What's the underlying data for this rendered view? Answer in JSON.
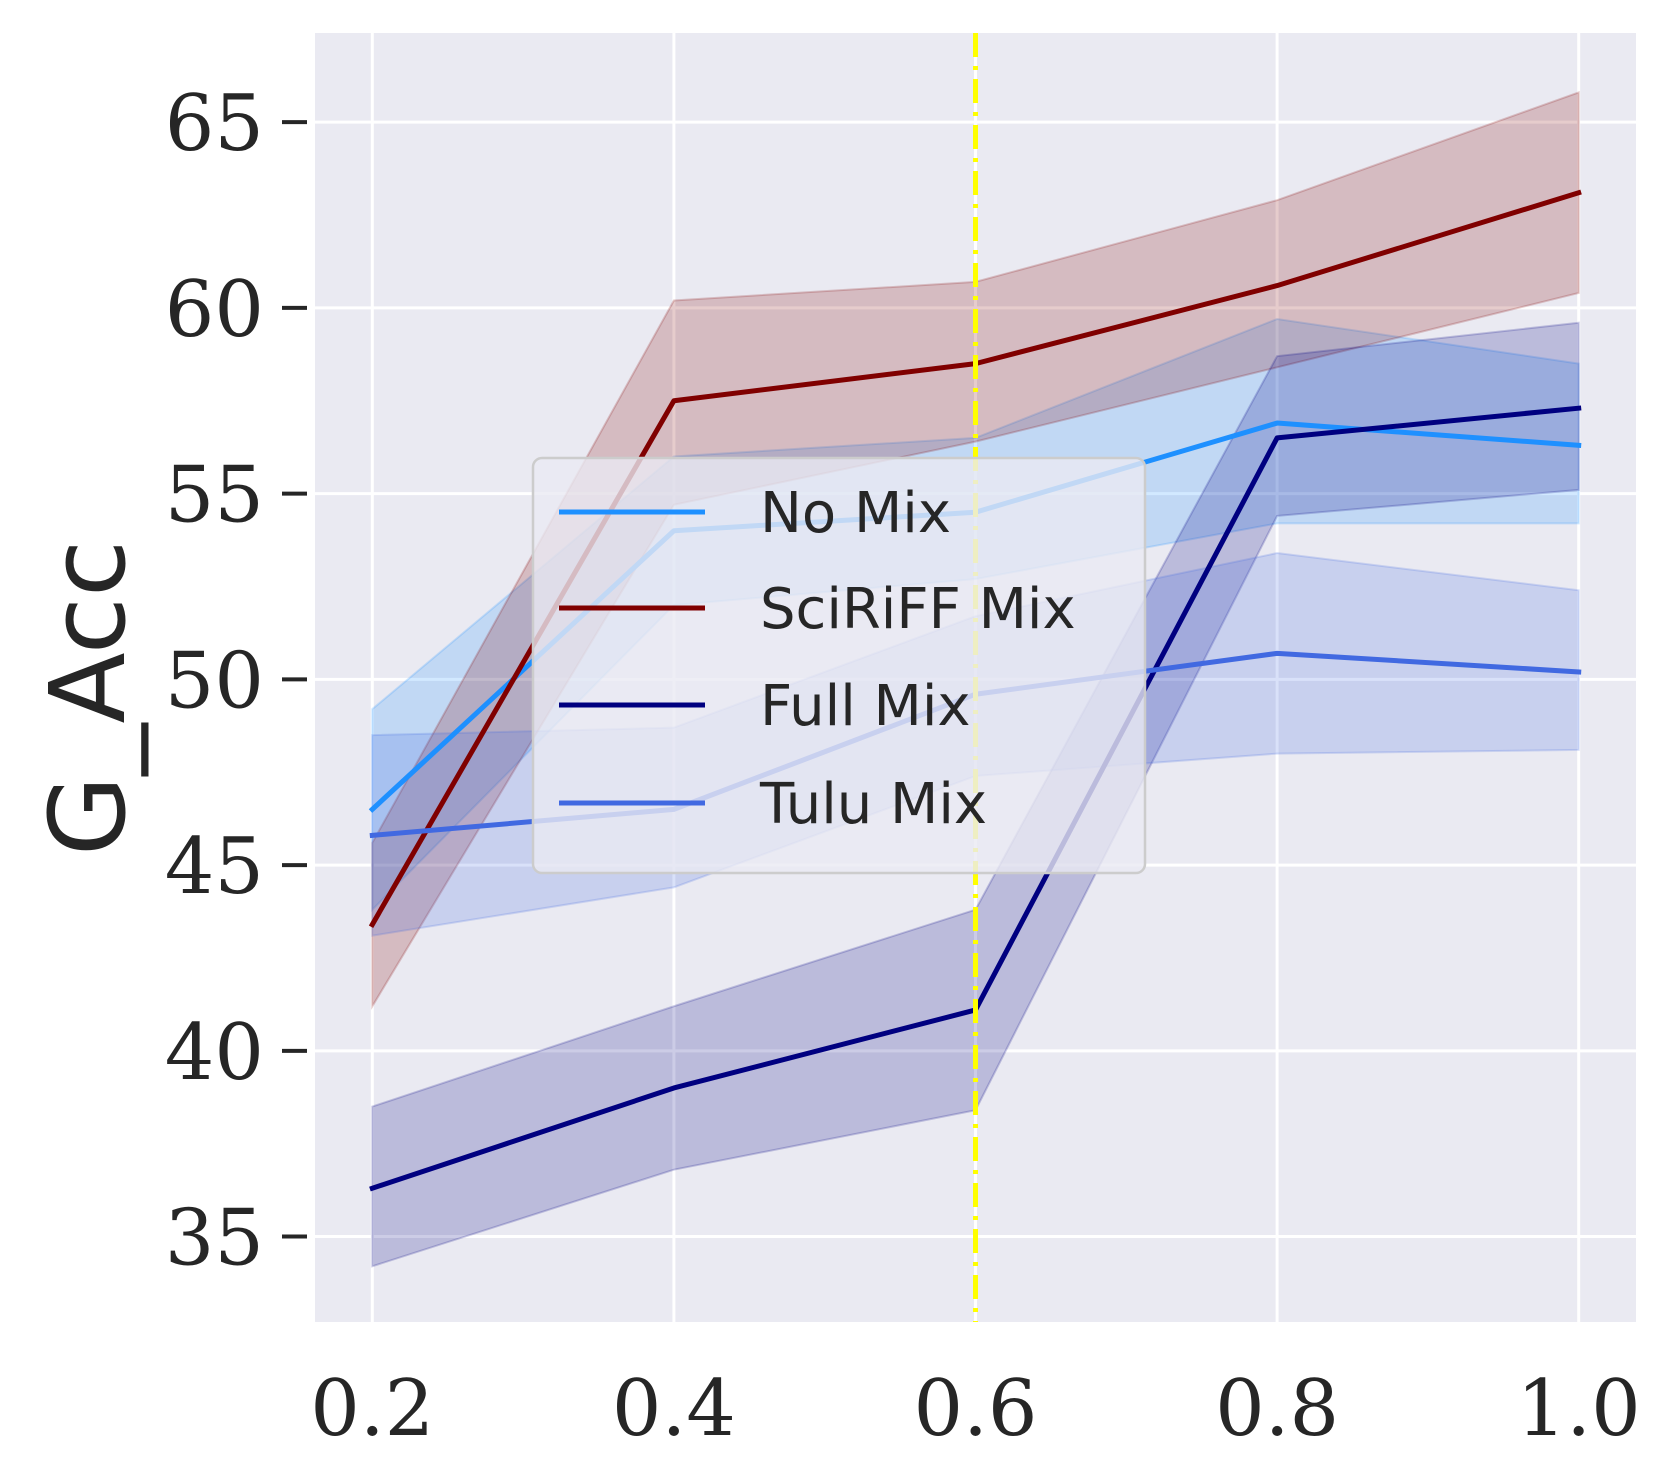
{
  "chart_data": {
    "type": "line",
    "title": "",
    "xlabel": "",
    "ylabel": "G_Acc",
    "x": [
      0.2,
      0.4,
      0.6,
      0.8,
      1.0
    ],
    "x_tick_labels": [
      "0.2",
      "0.4",
      "0.6",
      "0.8",
      "1.0"
    ],
    "y_ticks": [
      35,
      40,
      45,
      50,
      55,
      60,
      65
    ],
    "y_tick_labels": [
      "35",
      "40",
      "45",
      "50",
      "55",
      "60",
      "65"
    ],
    "xlim": [
      0.162,
      1.038
    ],
    "ylim": [
      32.7,
      67.4
    ],
    "grid": true,
    "legend_position": "center",
    "vline": {
      "x": 0.6,
      "color": "#ffff00",
      "style": "dash-dot"
    },
    "series": [
      {
        "name": "No Mix",
        "color": "#1e90ff",
        "values": [
          46.5,
          54.0,
          54.5,
          56.9,
          56.3
        ],
        "lower": [
          43.8,
          52.0,
          52.7,
          54.2,
          54.2
        ],
        "upper": [
          49.2,
          56.0,
          56.5,
          59.7,
          58.5
        ]
      },
      {
        "name": "SciRiFF Mix",
        "color": "#800000",
        "values": [
          43.4,
          57.5,
          58.5,
          60.6,
          63.1
        ],
        "lower": [
          41.2,
          54.7,
          56.4,
          58.4,
          60.4
        ],
        "upper": [
          45.6,
          60.2,
          60.7,
          62.9,
          65.8
        ]
      },
      {
        "name": "Full Mix",
        "color": "#000080",
        "values": [
          36.3,
          39.0,
          41.1,
          56.5,
          57.3
        ],
        "lower": [
          34.2,
          36.8,
          38.4,
          54.4,
          55.1
        ],
        "upper": [
          38.5,
          41.2,
          43.8,
          58.7,
          59.6
        ]
      },
      {
        "name": "Tulu Mix",
        "color": "#4169e1",
        "values": [
          45.8,
          46.5,
          49.6,
          50.7,
          50.2
        ],
        "lower": [
          43.1,
          44.4,
          47.4,
          48.0,
          48.1
        ],
        "upper": [
          48.5,
          48.7,
          51.7,
          53.4,
          52.4
        ]
      }
    ]
  }
}
